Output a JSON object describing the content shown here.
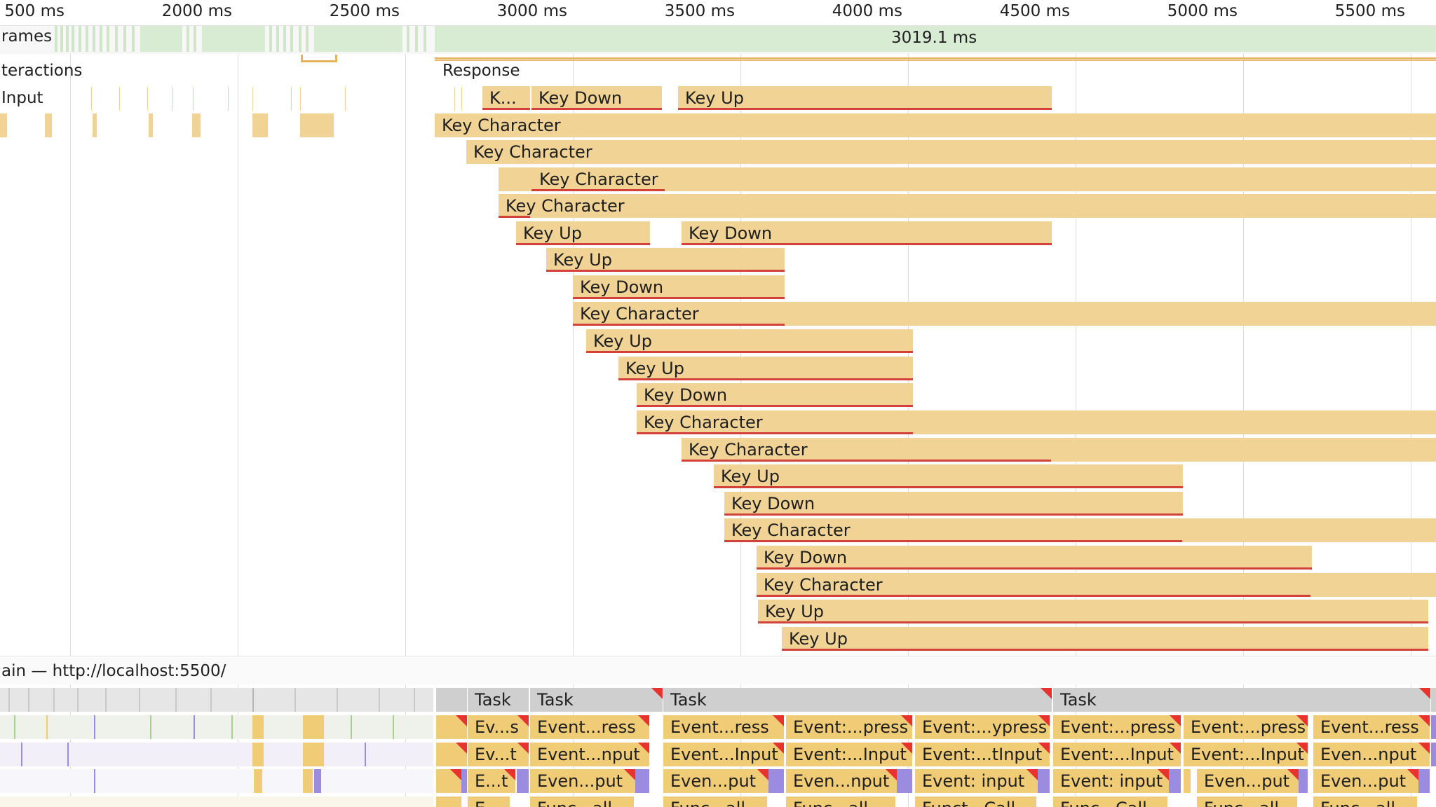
{
  "ruler": {
    "ticks": [
      "500 ms",
      "2000 ms",
      "2500 ms",
      "3000 ms",
      "3500 ms",
      "4000 ms",
      "4500 ms",
      "5000 ms",
      "5500 ms"
    ]
  },
  "frames": {
    "label": "rames",
    "duration": "3019.1 ms"
  },
  "interactions": {
    "label": "teractions",
    "response_label": "Response",
    "input_label": "Input",
    "events": [
      "K...",
      "Key Down",
      "Key Up",
      "Key Character",
      "Key Character",
      "Key Character",
      "Key Character",
      "Key Up",
      "Key Down",
      "Key Up",
      "Key Down",
      "Key Character",
      "Key Up",
      "Key Up",
      "Key Down",
      "Key Character",
      "Key Character",
      "Key Up",
      "Key Down",
      "Key Character",
      "Key Down",
      "Key Character",
      "Key Up",
      "Key Up"
    ]
  },
  "main": {
    "label": "ain — http://localhost:5500/",
    "tasks": [
      "Task",
      "Task",
      "Task",
      "Task"
    ],
    "row1": [
      "Ev...s",
      "Event...ress",
      "Event...ress",
      "Event:...press",
      "Event:...ypress",
      "Event:...press",
      "Event:...press",
      "Event...ress"
    ],
    "row2": [
      "Ev...t",
      "Event...nput",
      "Event...Input",
      "Event:...Input",
      "Event:...tInput",
      "Event:...Input",
      "Event:...Input",
      "Even...nput"
    ],
    "row3": [
      "E...t",
      "Even...put",
      "Even...put",
      "Even...nput",
      "Event: input",
      "Event: input",
      "Even...put",
      "Even...put"
    ],
    "row4": [
      "E...",
      "Func...all",
      "Func...all",
      "Func...all",
      "Funct...Call",
      "Func...Call",
      "Func...all",
      "Func...all"
    ]
  },
  "colors": {
    "event_fill": "#f0d395",
    "event_underline": "#d2423b",
    "task_gray": "#cfcfcf",
    "task_yellow": "#f0cc77",
    "frame_green": "#d8ecd3",
    "warning_red": "#e8322d",
    "purple": "#9c8ce0"
  }
}
